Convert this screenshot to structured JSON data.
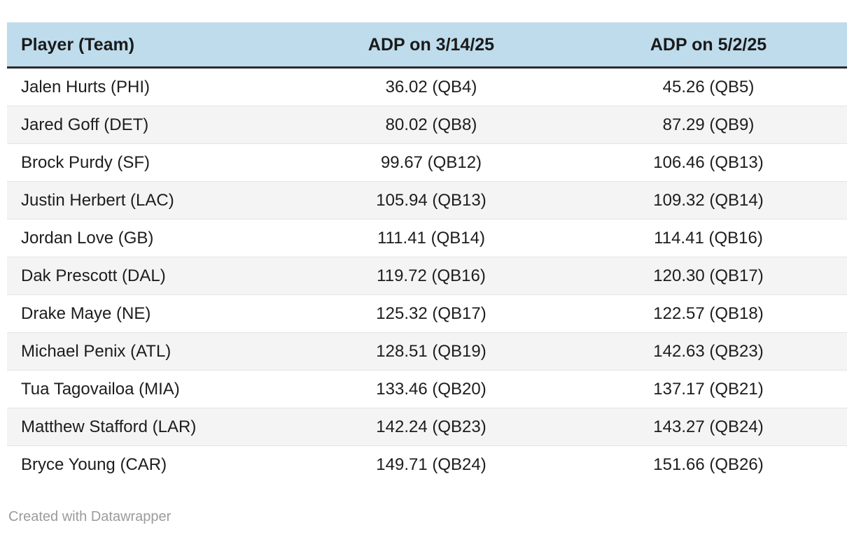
{
  "chart_data": {
    "type": "table",
    "columns": [
      "Player (Team)",
      "ADP on 3/14/25",
      "ADP on 5/2/25"
    ],
    "rows": [
      [
        "Jalen Hurts (PHI)",
        "36.02 (QB4)",
        "45.26 (QB5)"
      ],
      [
        "Jared Goff (DET)",
        "80.02 (QB8)",
        "87.29 (QB9)"
      ],
      [
        "Brock Purdy (SF)",
        "99.67 (QB12)",
        "106.46 (QB13)"
      ],
      [
        "Justin Herbert (LAC)",
        "105.94 (QB13)",
        "109.32 (QB14)"
      ],
      [
        "Jordan Love (GB)",
        "111.41 (QB14)",
        "114.41 (QB16)"
      ],
      [
        "Dak Prescott (DAL)",
        "119.72 (QB16)",
        "120.30 (QB17)"
      ],
      [
        "Drake Maye (NE)",
        "125.32 (QB17)",
        "122.57 (QB18)"
      ],
      [
        "Michael Penix (ATL)",
        "128.51 (QB19)",
        "142.63 (QB23)"
      ],
      [
        "Tua Tagovailoa (MIA)",
        "133.46 (QB20)",
        "137.17 (QB21)"
      ],
      [
        "Matthew Stafford (LAR)",
        "142.24 (QB23)",
        "143.27 (QB24)"
      ],
      [
        "Bryce Young (CAR)",
        "149.71 (QB24)",
        "151.66 (QB26)"
      ]
    ],
    "layout_hints": {
      "header_bg": "#bedcec",
      "alt_row_bg": "#f4f4f4",
      "header_rule": "#2b2b2b",
      "row_rule": "#e4e4e4",
      "text_color": "#1d1d1d",
      "first_column_align": "left",
      "value_columns_align": "center"
    }
  },
  "footer": {
    "credit": "Created with Datawrapper",
    "credit_color": "#9b9b9b"
  }
}
